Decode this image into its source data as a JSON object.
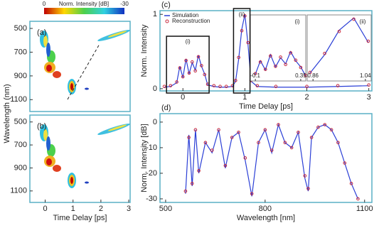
{
  "chart_data": [
    {
      "type": "heatmap",
      "panel_label": "(a)",
      "ylabel": "Wavelength (nm)",
      "xlim": [
        -0.55,
        3.05
      ],
      "ylim": [
        440,
        1200
      ],
      "y_inverted": true,
      "yticks": [
        500,
        700,
        900,
        1100
      ],
      "colorbar": {
        "label": "Norm. Intensity [dB]",
        "lim": [
          0,
          -30
        ],
        "ticks": [
          0,
          -30
        ]
      }
    },
    {
      "type": "heatmap",
      "panel_label": "(b)",
      "xlabel": "Time Delay [ps]",
      "xlim": [
        -0.55,
        3.05
      ],
      "ylim": [
        440,
        1200
      ],
      "y_inverted": true,
      "xticks": [
        0,
        1,
        2,
        3
      ],
      "yticks": [
        500,
        700,
        900,
        1100
      ]
    },
    {
      "type": "line",
      "panel_label": "(c)",
      "xlabel": "Time Delay [ps]",
      "ylabel": "Norm. Intensity",
      "xlim": [
        -0.37,
        3.05
      ],
      "ylim": [
        -0.03,
        1.05
      ],
      "xticks": [
        0,
        1,
        2,
        3
      ],
      "yticks": [
        0,
        1
      ],
      "x": [
        -0.3,
        -0.2,
        -0.1,
        -0.05,
        0,
        0.05,
        0.1,
        0.15,
        0.2,
        0.25,
        0.3,
        0.35,
        0.4,
        0.5,
        0.6,
        0.7,
        0.8,
        0.85,
        0.9,
        0.95,
        1.0,
        1.05,
        1.1,
        1.2,
        1.5,
        2.0,
        2.5,
        3.0
      ],
      "series": [
        {
          "name": "Simulation",
          "color": "#2b3fd6",
          "style": "line",
          "values": [
            0.02,
            0.03,
            0.08,
            0.3,
            0.15,
            0.4,
            0.2,
            0.35,
            0.25,
            0.45,
            0.3,
            0.2,
            0.05,
            0.03,
            0.02,
            0.02,
            0.03,
            0.1,
            0.4,
            0.8,
            1.0,
            0.6,
            0.1,
            0.03,
            0.02,
            0.02,
            0.03,
            0.04
          ]
        },
        {
          "name": "Reconstruction",
          "color": "#c8283c",
          "style": "markers",
          "values": [
            0.03,
            0.04,
            0.09,
            0.28,
            0.16,
            0.38,
            0.21,
            0.36,
            0.24,
            0.43,
            0.31,
            0.19,
            0.06,
            0.04,
            0.03,
            0.03,
            0.04,
            0.11,
            0.42,
            0.78,
            0.98,
            0.62,
            0.11,
            0.04,
            0.03,
            0.03,
            0.04,
            0.05
          ]
        }
      ],
      "insets": [
        {
          "label": "(i)",
          "xlim": [
            -0.15,
            0.4
          ],
          "xticks": [
            -0.1,
            0.35
          ]
        },
        {
          "label": "(ii)",
          "xlim": [
            0.84,
            1.06
          ],
          "xticks": [
            0.86,
            1.04
          ]
        }
      ]
    },
    {
      "type": "line",
      "panel_label": "(d)",
      "xlabel": "Wavelength [nm]",
      "ylabel": "Norm. Intensity [dB]",
      "xlim": [
        483,
        1122
      ],
      "ylim": [
        -31.4,
        3.3
      ],
      "xticks": [
        500,
        800,
        1100
      ],
      "yticks": [
        -30,
        -20,
        -10,
        0
      ],
      "x": [
        560,
        570,
        580,
        590,
        600,
        620,
        640,
        660,
        680,
        700,
        720,
        740,
        760,
        780,
        800,
        820,
        840,
        860,
        880,
        900,
        920,
        930,
        940,
        960,
        980,
        1000,
        1020,
        1040,
        1060,
        1080
      ],
      "series": [
        {
          "name": "Simulation",
          "color": "#2b3fd6",
          "style": "line",
          "values": [
            -28,
            -5,
            -25,
            -3,
            -20,
            -8,
            -12,
            -3,
            -18,
            -6,
            -4,
            -15,
            -29,
            -8,
            -3,
            -12,
            -1,
            -8,
            -10,
            -4,
            -22,
            -27,
            -6,
            -2,
            -1,
            -3,
            -8,
            -16,
            -24,
            -30
          ]
        },
        {
          "name": "Reconstruction",
          "color": "#c8283c",
          "style": "markers",
          "values": [
            -27,
            -6,
            -24,
            -3,
            -19,
            -8,
            -11,
            -3,
            -17,
            -6,
            -4,
            -14,
            -28,
            -8,
            -3,
            -11,
            -1,
            -8,
            -10,
            -4,
            -21,
            -26,
            -6,
            -2,
            -1,
            -3,
            -8,
            -16,
            -24,
            -30
          ]
        }
      ]
    }
  ]
}
